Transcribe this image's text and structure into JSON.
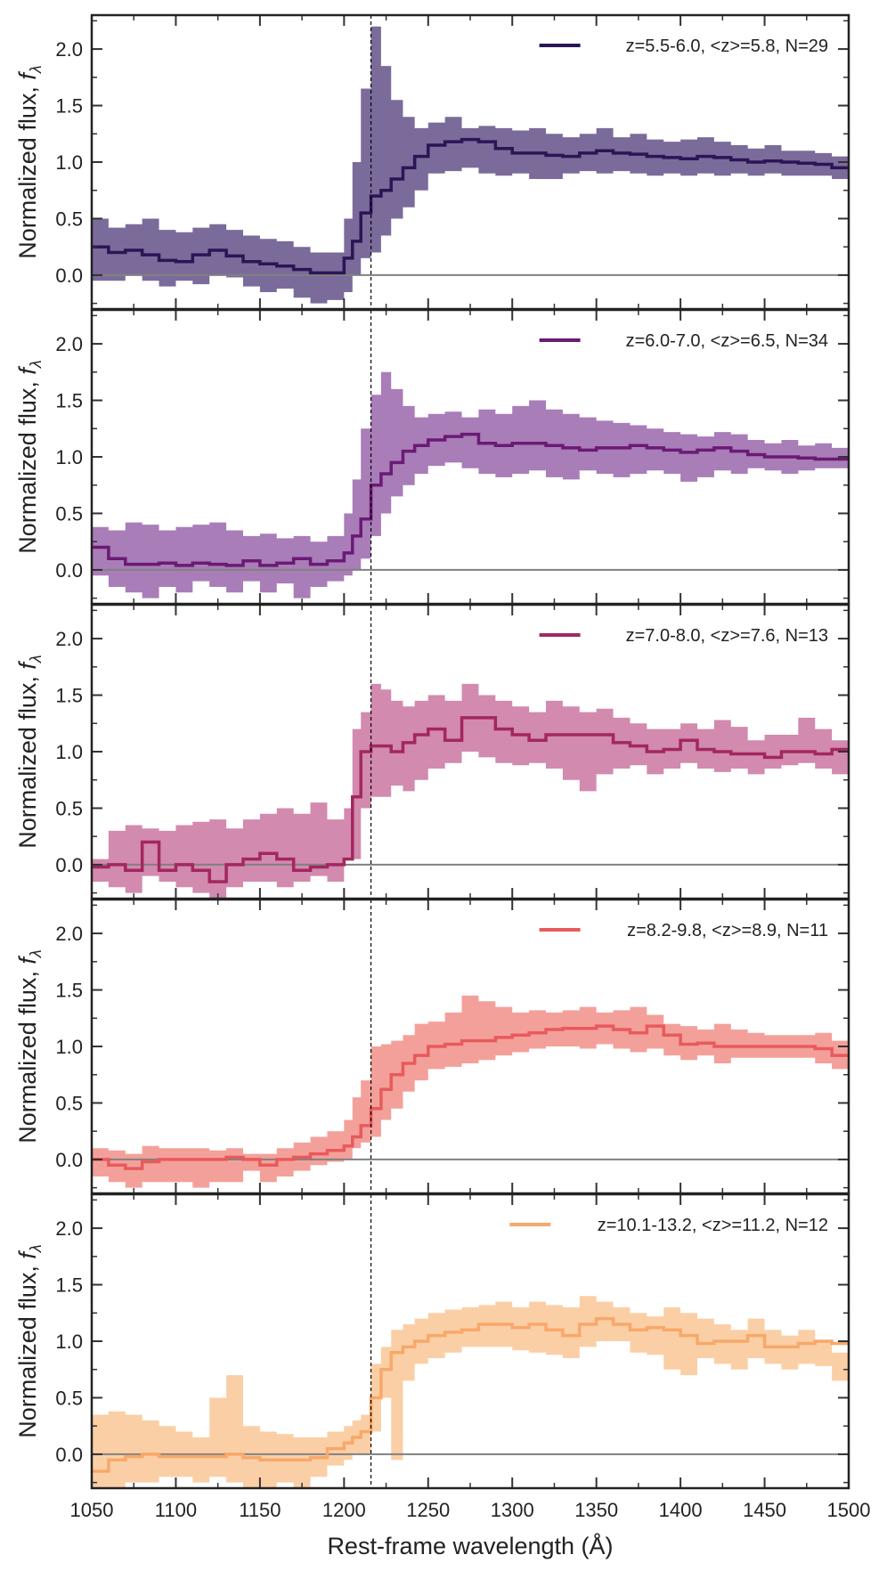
{
  "figure": {
    "xlabel": "Rest-frame wavelength (Å)",
    "ylabel_main": "Normalized flux, ",
    "ylabel_symbol": "f",
    "ylabel_sub": "λ"
  },
  "chart_data": {
    "type": "line",
    "xlim": [
      1050,
      1500
    ],
    "ylim": [
      -0.3,
      2.3
    ],
    "x_ticks": [
      1050,
      1100,
      1150,
      1200,
      1250,
      1300,
      1350,
      1400,
      1450,
      1500
    ],
    "y_ticks": [
      0.0,
      0.5,
      1.0,
      1.5,
      2.0
    ],
    "y_tick_labels": [
      "0.0",
      "0.5",
      "1.0",
      "1.5",
      "2.0"
    ],
    "reference_line_x": 1216,
    "zero_line_y": 0,
    "grid": false,
    "legend_placement": "top-right",
    "bin_edges": [
      1050,
      1060,
      1070,
      1080,
      1090,
      1100,
      1110,
      1120,
      1130,
      1140,
      1150,
      1160,
      1170,
      1180,
      1190,
      1200,
      1205,
      1210,
      1216,
      1222,
      1228,
      1235,
      1242,
      1250,
      1260,
      1270,
      1280,
      1290,
      1300,
      1310,
      1320,
      1330,
      1340,
      1350,
      1360,
      1370,
      1380,
      1390,
      1400,
      1410,
      1420,
      1430,
      1440,
      1450,
      1460,
      1470,
      1480,
      1490,
      1500
    ],
    "panels": [
      {
        "legend": "z=5.5-6.0, <z>=5.8, N=29",
        "color": "#2c1556",
        "fill": "#7b6b9a",
        "median": [
          0.25,
          0.2,
          0.22,
          0.18,
          0.13,
          0.12,
          0.18,
          0.22,
          0.17,
          0.12,
          0.1,
          0.08,
          0.05,
          0.02,
          0.02,
          0.15,
          0.3,
          0.55,
          0.7,
          0.75,
          0.85,
          0.95,
          1.05,
          1.15,
          1.18,
          1.2,
          1.18,
          1.12,
          1.08,
          1.08,
          1.06,
          1.05,
          1.08,
          1.1,
          1.08,
          1.07,
          1.05,
          1.04,
          1.03,
          1.05,
          1.04,
          1.02,
          1.0,
          1.01,
          1.0,
          0.99,
          0.98,
          0.95
        ],
        "upper": [
          0.5,
          0.42,
          0.45,
          0.5,
          0.4,
          0.38,
          0.42,
          0.45,
          0.4,
          0.35,
          0.32,
          0.3,
          0.25,
          0.2,
          0.2,
          0.5,
          1.0,
          1.65,
          2.2,
          1.85,
          1.55,
          1.4,
          1.3,
          1.35,
          1.4,
          1.3,
          1.32,
          1.3,
          1.28,
          1.3,
          1.25,
          1.22,
          1.25,
          1.3,
          1.22,
          1.25,
          1.2,
          1.18,
          1.2,
          1.22,
          1.18,
          1.15,
          1.12,
          1.15,
          1.1,
          1.1,
          1.08,
          1.05
        ],
        "lower": [
          -0.05,
          -0.05,
          0.0,
          -0.05,
          -0.1,
          -0.05,
          -0.08,
          0.0,
          -0.02,
          -0.1,
          -0.15,
          -0.12,
          -0.2,
          -0.25,
          -0.22,
          -0.15,
          0.0,
          0.15,
          0.2,
          0.35,
          0.5,
          0.6,
          0.75,
          0.9,
          0.92,
          0.95,
          0.9,
          0.88,
          0.9,
          0.85,
          0.85,
          0.9,
          0.92,
          0.9,
          0.92,
          0.9,
          0.88,
          0.9,
          0.88,
          0.9,
          0.88,
          0.9,
          0.88,
          0.9,
          0.88,
          0.88,
          0.88,
          0.85
        ]
      },
      {
        "legend": "z=6.0-7.0, <z>=6.5, N=34",
        "color": "#6a1a74",
        "fill": "#a97db8",
        "median": [
          0.2,
          0.1,
          0.05,
          0.05,
          0.06,
          0.04,
          0.06,
          0.05,
          0.04,
          0.08,
          0.04,
          0.06,
          0.1,
          0.05,
          0.08,
          0.15,
          0.3,
          0.45,
          0.75,
          0.85,
          0.95,
          1.05,
          1.1,
          1.15,
          1.18,
          1.2,
          1.12,
          1.1,
          1.12,
          1.12,
          1.1,
          1.08,
          1.06,
          1.08,
          1.08,
          1.1,
          1.08,
          1.06,
          1.04,
          1.06,
          1.08,
          1.05,
          1.02,
          1.0,
          1.0,
          0.99,
          0.98,
          0.98
        ],
        "upper": [
          0.38,
          0.35,
          0.42,
          0.4,
          0.35,
          0.38,
          0.4,
          0.42,
          0.35,
          0.3,
          0.32,
          0.28,
          0.3,
          0.25,
          0.3,
          0.5,
          0.8,
          1.25,
          1.55,
          1.75,
          1.6,
          1.45,
          1.35,
          1.38,
          1.4,
          1.35,
          1.42,
          1.38,
          1.45,
          1.5,
          1.42,
          1.38,
          1.35,
          1.32,
          1.3,
          1.28,
          1.25,
          1.22,
          1.2,
          1.18,
          1.22,
          1.2,
          1.15,
          1.12,
          1.15,
          1.1,
          1.12,
          1.08
        ],
        "lower": [
          -0.05,
          -0.15,
          -0.2,
          -0.25,
          -0.15,
          -0.2,
          -0.1,
          -0.15,
          -0.2,
          -0.1,
          -0.2,
          -0.12,
          -0.25,
          -0.15,
          -0.1,
          -0.05,
          0.0,
          0.1,
          0.3,
          0.5,
          0.65,
          0.75,
          0.85,
          0.92,
          0.95,
          0.9,
          0.85,
          0.82,
          0.85,
          0.88,
          0.82,
          0.8,
          0.88,
          0.85,
          0.82,
          0.85,
          0.88,
          0.85,
          0.78,
          0.82,
          0.88,
          0.85,
          0.9,
          0.88,
          0.85,
          0.88,
          0.9,
          0.9
        ]
      },
      {
        "legend": "z=7.0-8.0, <z>=7.6, N=13",
        "color": "#a3275f",
        "fill": "#d28aae",
        "median": [
          -0.02,
          0.0,
          -0.05,
          0.2,
          -0.05,
          0.0,
          -0.05,
          -0.15,
          0.0,
          0.05,
          0.1,
          0.05,
          -0.05,
          -0.02,
          0.0,
          0.05,
          0.6,
          1.0,
          1.05,
          1.05,
          1.0,
          1.08,
          1.15,
          1.2,
          1.1,
          1.3,
          1.3,
          1.2,
          1.15,
          1.1,
          1.15,
          1.15,
          1.15,
          1.15,
          1.08,
          1.05,
          1.0,
          1.02,
          1.1,
          1.02,
          1.0,
          0.98,
          0.98,
          0.95,
          1.0,
          1.0,
          0.98,
          1.02
        ],
        "upper": [
          0.05,
          0.3,
          0.35,
          0.32,
          0.3,
          0.35,
          0.38,
          0.4,
          0.32,
          0.4,
          0.45,
          0.5,
          0.45,
          0.55,
          0.4,
          0.5,
          1.2,
          1.35,
          1.6,
          1.55,
          1.45,
          1.4,
          1.45,
          1.5,
          1.45,
          1.6,
          1.5,
          1.45,
          1.4,
          1.35,
          1.45,
          1.4,
          1.35,
          1.38,
          1.3,
          1.25,
          1.2,
          1.2,
          1.25,
          1.2,
          1.28,
          1.22,
          1.1,
          1.15,
          1.15,
          1.3,
          1.2,
          1.1
        ],
        "lower": [
          -0.15,
          -0.2,
          -0.25,
          -0.1,
          -0.15,
          -0.2,
          -0.25,
          -0.3,
          -0.2,
          -0.15,
          -0.15,
          -0.2,
          -0.15,
          -0.1,
          -0.15,
          0.05,
          0.05,
          0.5,
          0.6,
          0.6,
          0.7,
          0.65,
          0.75,
          0.85,
          0.9,
          1.0,
          0.95,
          0.9,
          0.88,
          0.9,
          0.85,
          0.75,
          0.65,
          0.8,
          0.85,
          0.88,
          0.8,
          0.85,
          0.9,
          0.85,
          0.82,
          0.85,
          0.8,
          0.85,
          0.88,
          0.9,
          0.85,
          0.8
        ]
      },
      {
        "legend": "z=8.2-9.8, <z>=8.9, N=11",
        "color": "#e85a5c",
        "fill": "#f4a09a",
        "median": [
          0.0,
          -0.05,
          -0.08,
          -0.02,
          0.0,
          0.0,
          0.0,
          0.0,
          0.02,
          0.0,
          -0.05,
          0.0,
          0.02,
          0.05,
          0.08,
          0.12,
          0.2,
          0.3,
          0.45,
          0.62,
          0.75,
          0.85,
          0.92,
          1.0,
          1.02,
          1.05,
          1.05,
          1.08,
          1.1,
          1.12,
          1.15,
          1.16,
          1.16,
          1.18,
          1.15,
          1.12,
          1.18,
          1.1,
          1.02,
          1.03,
          1.0,
          1.0,
          1.0,
          1.0,
          1.0,
          1.0,
          0.98,
          0.92
        ],
        "upper": [
          0.1,
          0.08,
          0.05,
          0.12,
          0.1,
          0.1,
          0.1,
          0.08,
          0.1,
          0.05,
          0.05,
          0.1,
          0.15,
          0.2,
          0.25,
          0.35,
          0.55,
          0.7,
          1.0,
          1.02,
          1.05,
          1.1,
          1.2,
          1.22,
          1.3,
          1.45,
          1.4,
          1.35,
          1.3,
          1.32,
          1.3,
          1.32,
          1.35,
          1.3,
          1.32,
          1.35,
          1.28,
          1.2,
          1.18,
          1.15,
          1.2,
          1.15,
          1.12,
          1.1,
          1.1,
          1.1,
          1.12,
          1.05
        ],
        "lower": [
          -0.15,
          -0.2,
          -0.25,
          -0.2,
          -0.2,
          -0.2,
          -0.25,
          -0.2,
          -0.2,
          -0.1,
          -0.2,
          -0.15,
          -0.1,
          -0.05,
          -0.02,
          0.0,
          0.1,
          0.15,
          0.2,
          0.35,
          0.45,
          0.6,
          0.7,
          0.8,
          0.82,
          0.85,
          0.88,
          0.92,
          0.95,
          0.98,
          1.0,
          1.0,
          0.98,
          1.02,
          0.98,
          0.95,
          0.98,
          0.92,
          0.88,
          0.92,
          0.85,
          0.9,
          0.9,
          0.9,
          0.9,
          0.9,
          0.85,
          0.8
        ]
      },
      {
        "legend": "z=10.1-13.2, <z>=11.2, N=12",
        "color": "#f8a86a",
        "fill": "#fbcfa6",
        "median": [
          -0.15,
          -0.05,
          -0.02,
          0.0,
          -0.02,
          -0.02,
          -0.02,
          -0.02,
          0.0,
          -0.03,
          -0.05,
          -0.05,
          -0.05,
          -0.03,
          0.05,
          0.1,
          0.15,
          0.2,
          0.5,
          0.75,
          0.9,
          0.95,
          1.0,
          1.05,
          1.08,
          1.1,
          1.15,
          1.15,
          1.12,
          1.15,
          1.1,
          1.05,
          1.15,
          1.2,
          1.15,
          1.1,
          1.12,
          1.1,
          1.05,
          0.98,
          1.0,
          1.0,
          1.05,
          0.95,
          0.95,
          0.98,
          1.0,
          0.98
        ],
        "upper": [
          0.35,
          0.38,
          0.35,
          0.3,
          0.25,
          0.2,
          0.15,
          0.5,
          0.7,
          0.25,
          0.2,
          0.18,
          0.15,
          0.15,
          0.2,
          0.25,
          0.3,
          0.35,
          0.8,
          0.95,
          1.1,
          1.15,
          1.2,
          1.25,
          1.28,
          1.3,
          1.32,
          1.35,
          1.3,
          1.35,
          1.32,
          1.3,
          1.4,
          1.35,
          1.3,
          1.25,
          1.22,
          1.3,
          1.25,
          1.2,
          1.15,
          1.1,
          1.2,
          1.1,
          1.05,
          1.1,
          1.0,
          0.9
        ],
        "lower": [
          -0.3,
          -0.3,
          -0.25,
          -0.25,
          -0.2,
          -0.2,
          -0.25,
          -0.2,
          -0.25,
          -0.3,
          -0.3,
          -0.25,
          -0.3,
          -0.2,
          -0.1,
          -0.05,
          0.0,
          0.0,
          0.2,
          0.5,
          -0.05,
          0.65,
          0.8,
          0.85,
          0.9,
          0.95,
          0.95,
          0.95,
          0.92,
          0.9,
          0.88,
          0.85,
          0.95,
          1.0,
          1.0,
          0.9,
          0.88,
          0.75,
          0.7,
          0.85,
          0.8,
          0.75,
          0.85,
          0.8,
          0.75,
          0.8,
          0.78,
          0.65
        ]
      }
    ]
  }
}
